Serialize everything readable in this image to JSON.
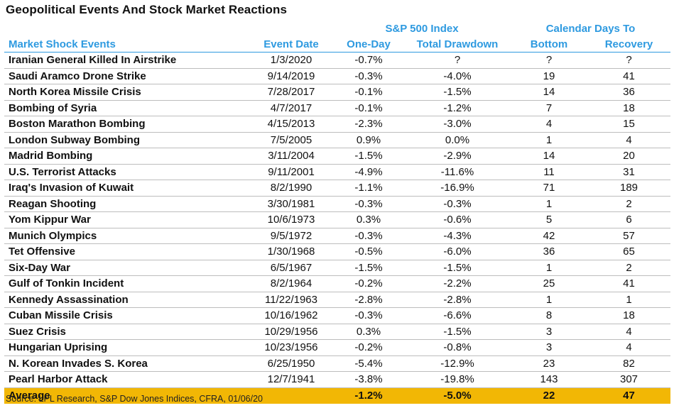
{
  "title": "Geopolitical Events And Stock Market Reactions",
  "source": "Source: LPL Research, S&P Dow Jones Indices, CFRA, 01/06/20",
  "chart_data": {
    "type": "table",
    "title": "Geopolitical Events And Stock Market Reactions",
    "group_headers": [
      "S&P 500 Index",
      "Calendar Days To"
    ],
    "columns": [
      "Market Shock Events",
      "Event Date",
      "One-Day",
      "Total Drawdown",
      "Bottom",
      "Recovery"
    ],
    "rows": [
      [
        "Iranian General Killed In Airstrike",
        "1/3/2020",
        "-0.7%",
        "?",
        "?",
        "?"
      ],
      [
        "Saudi Aramco Drone Strike",
        "9/14/2019",
        "-0.3%",
        "-4.0%",
        "19",
        "41"
      ],
      [
        "North Korea Missile Crisis",
        "7/28/2017",
        "-0.1%",
        "-1.5%",
        "14",
        "36"
      ],
      [
        "Bombing of Syria",
        "4/7/2017",
        "-0.1%",
        "-1.2%",
        "7",
        "18"
      ],
      [
        "Boston Marathon Bombing",
        "4/15/2013",
        "-2.3%",
        "-3.0%",
        "4",
        "15"
      ],
      [
        "London Subway Bombing",
        "7/5/2005",
        "0.9%",
        "0.0%",
        "1",
        "4"
      ],
      [
        "Madrid Bombing",
        "3/11/2004",
        "-1.5%",
        "-2.9%",
        "14",
        "20"
      ],
      [
        "U.S. Terrorist Attacks",
        "9/11/2001",
        "-4.9%",
        "-11.6%",
        "11",
        "31"
      ],
      [
        "Iraq's Invasion of Kuwait",
        "8/2/1990",
        "-1.1%",
        "-16.9%",
        "71",
        "189"
      ],
      [
        "Reagan Shooting",
        "3/30/1981",
        "-0.3%",
        "-0.3%",
        "1",
        "2"
      ],
      [
        "Yom Kippur War",
        "10/6/1973",
        "0.3%",
        "-0.6%",
        "5",
        "6"
      ],
      [
        "Munich Olympics",
        "9/5/1972",
        "-0.3%",
        "-4.3%",
        "42",
        "57"
      ],
      [
        "Tet Offensive",
        "1/30/1968",
        "-0.5%",
        "-6.0%",
        "36",
        "65"
      ],
      [
        "Six-Day War",
        "6/5/1967",
        "-1.5%",
        "-1.5%",
        "1",
        "2"
      ],
      [
        "Gulf of Tonkin Incident",
        "8/2/1964",
        "-0.2%",
        "-2.2%",
        "25",
        "41"
      ],
      [
        "Kennedy Assassination",
        "11/22/1963",
        "-2.8%",
        "-2.8%",
        "1",
        "1"
      ],
      [
        "Cuban Missile Crisis",
        "10/16/1962",
        "-0.3%",
        "-6.6%",
        "8",
        "18"
      ],
      [
        "Suez Crisis",
        "10/29/1956",
        "0.3%",
        "-1.5%",
        "3",
        "4"
      ],
      [
        "Hungarian Uprising",
        "10/23/1956",
        "-0.2%",
        "-0.8%",
        "3",
        "4"
      ],
      [
        "N. Korean Invades S. Korea",
        "6/25/1950",
        "-5.4%",
        "-12.9%",
        "23",
        "82"
      ],
      [
        "Pearl Harbor Attack",
        "12/7/1941",
        "-3.8%",
        "-19.8%",
        "143",
        "307"
      ]
    ],
    "average": [
      "Average",
      "",
      "-1.2%",
      "-5.0%",
      "22",
      "47"
    ],
    "colors": {
      "header": "#2e9ae0",
      "average_bg": "#f2b705",
      "rule": "#bdbdbd"
    }
  }
}
